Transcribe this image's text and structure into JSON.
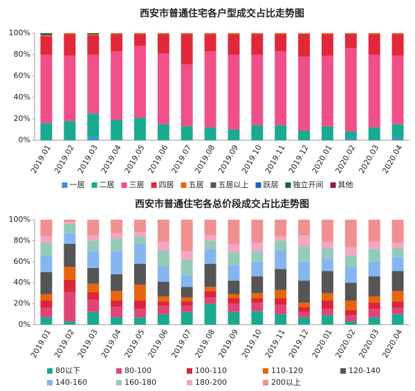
{
  "chart_data": [
    {
      "type": "stacked_bar",
      "title": "西安市普通住宅各户型成交占比走势图",
      "categories": [
        "2019.01",
        "2019.02",
        "2019.03",
        "2019.04",
        "2019.05",
        "2019.06",
        "2019.07",
        "2019.08",
        "2019.09",
        "2019.10",
        "2019.11",
        "2019.12",
        "2020.01",
        "2020.02",
        "2020.03",
        "2020.04"
      ],
      "ylim": [
        0,
        100
      ],
      "yticks": [
        {
          "value": 0,
          "label": "0%"
        },
        {
          "value": 20,
          "label": "20%"
        },
        {
          "value": 40,
          "label": "40%"
        },
        {
          "value": 60,
          "label": "60%"
        },
        {
          "value": 80,
          "label": "80%"
        },
        {
          "value": 100,
          "label": "100%"
        }
      ],
      "series": [
        {
          "name": "一居",
          "color": "#3d8fd9",
          "values": [
            0,
            0,
            3,
            0,
            0,
            0,
            0,
            0,
            0,
            0,
            0,
            0,
            0,
            2,
            0,
            2
          ]
        },
        {
          "name": "二居",
          "color": "#1aaa8f",
          "values": [
            16,
            18,
            22,
            19,
            21,
            15,
            13,
            12,
            10,
            14,
            14,
            9,
            13,
            6,
            12,
            13
          ]
        },
        {
          "name": "三居",
          "color": "#f0508a",
          "values": [
            64,
            61,
            55,
            64,
            67,
            66,
            58,
            71,
            70,
            66,
            69,
            69,
            66,
            78,
            68,
            64
          ]
        },
        {
          "name": "四居",
          "color": "#e0283a",
          "values": [
            17,
            20,
            18,
            16,
            11,
            18,
            28,
            16,
            19,
            19,
            16,
            21,
            20,
            13,
            19,
            20
          ]
        },
        {
          "name": "五居",
          "color": "#e8650f",
          "values": [
            1,
            1,
            1,
            1,
            1,
            1,
            1,
            1,
            1,
            1,
            1,
            1,
            1,
            1,
            1,
            1
          ]
        },
        {
          "name": "五居以上",
          "color": "#555555",
          "values": [
            1,
            0,
            0,
            0,
            0,
            0,
            0,
            0,
            0,
            0,
            0,
            0,
            0,
            0,
            0,
            0
          ]
        },
        {
          "name": "跃层",
          "color": "#1f5fbf",
          "values": [
            0,
            0,
            0,
            0,
            0,
            0,
            0,
            0,
            0,
            0,
            0,
            0,
            0,
            0,
            0,
            0
          ]
        },
        {
          "name": "独立开间",
          "color": "#1d5c4f",
          "values": [
            1,
            0,
            1,
            0,
            0,
            0,
            0,
            0,
            0,
            0,
            0,
            0,
            0,
            0,
            0,
            0
          ]
        },
        {
          "name": "其他",
          "color": "#9e1a38",
          "values": [
            0,
            0,
            0,
            0,
            0,
            0,
            0,
            0,
            0,
            0,
            0,
            0,
            0,
            0,
            0,
            0
          ]
        }
      ]
    },
    {
      "type": "stacked_bar",
      "title": "西安市普通住宅各总价段成交占比走势图",
      "categories": [
        "2019.01",
        "2019.02",
        "2019.03",
        "2019.04",
        "2019.05",
        "2019.06",
        "2019.07",
        "2019.08",
        "2019.09",
        "2019.10",
        "2019.11",
        "2019.12",
        "2020.01",
        "2020.02",
        "2020.03",
        "2020.04"
      ],
      "ylim": [
        0,
        100
      ],
      "yticks": [
        {
          "value": 0,
          "label": "0%"
        },
        {
          "value": 20,
          "label": "20%"
        },
        {
          "value": 40,
          "label": "40%"
        },
        {
          "value": 60,
          "label": "60%"
        },
        {
          "value": 80,
          "label": "80%"
        },
        {
          "value": 100,
          "label": "100%"
        }
      ],
      "series": [
        {
          "name": "80以下",
          "color": "#1aaa8f",
          "values": [
            7,
            3,
            12,
            7,
            7,
            10,
            12,
            20,
            12,
            13,
            10,
            7,
            9,
            3,
            7,
            10
          ]
        },
        {
          "name": "80-100",
          "color": "#e0457a",
          "values": [
            9,
            28,
            12,
            10,
            8,
            8,
            6,
            6,
            8,
            8,
            9,
            5,
            6,
            6,
            8,
            6
          ]
        },
        {
          "name": "100-110",
          "color": "#d9263a",
          "values": [
            7,
            12,
            7,
            6,
            8,
            4,
            4,
            6,
            5,
            4,
            6,
            5,
            8,
            5,
            6,
            6
          ]
        },
        {
          "name": "110-120",
          "color": "#e8650f",
          "values": [
            6,
            12,
            8,
            9,
            15,
            5,
            4,
            4,
            4,
            5,
            8,
            4,
            7,
            9,
            6,
            10
          ]
        },
        {
          "name": "120-140",
          "color": "#555555",
          "values": [
            21,
            22,
            15,
            16,
            20,
            14,
            10,
            22,
            13,
            16,
            20,
            21,
            21,
            17,
            19,
            19
          ]
        },
        {
          "name": "140-160",
          "color": "#86b6f0",
          "values": [
            16,
            10,
            16,
            22,
            19,
            15,
            11,
            14,
            15,
            14,
            18,
            18,
            12,
            15,
            14,
            13
          ]
        },
        {
          "name": "160-180",
          "color": "#93cbb8",
          "values": [
            12,
            9,
            10,
            12,
            7,
            15,
            15,
            8,
            12,
            10,
            9,
            14,
            10,
            11,
            12,
            9
          ]
        },
        {
          "name": "180-200",
          "color": "#f5a6c2",
          "values": [
            6,
            2,
            5,
            5,
            4,
            8,
            8,
            5,
            8,
            8,
            4,
            11,
            6,
            8,
            7,
            5
          ]
        },
        {
          "name": "200以上",
          "color": "#f09090",
          "values": [
            16,
            2,
            15,
            13,
            12,
            21,
            30,
            15,
            23,
            22,
            16,
            15,
            21,
            26,
            21,
            22
          ]
        }
      ]
    }
  ]
}
